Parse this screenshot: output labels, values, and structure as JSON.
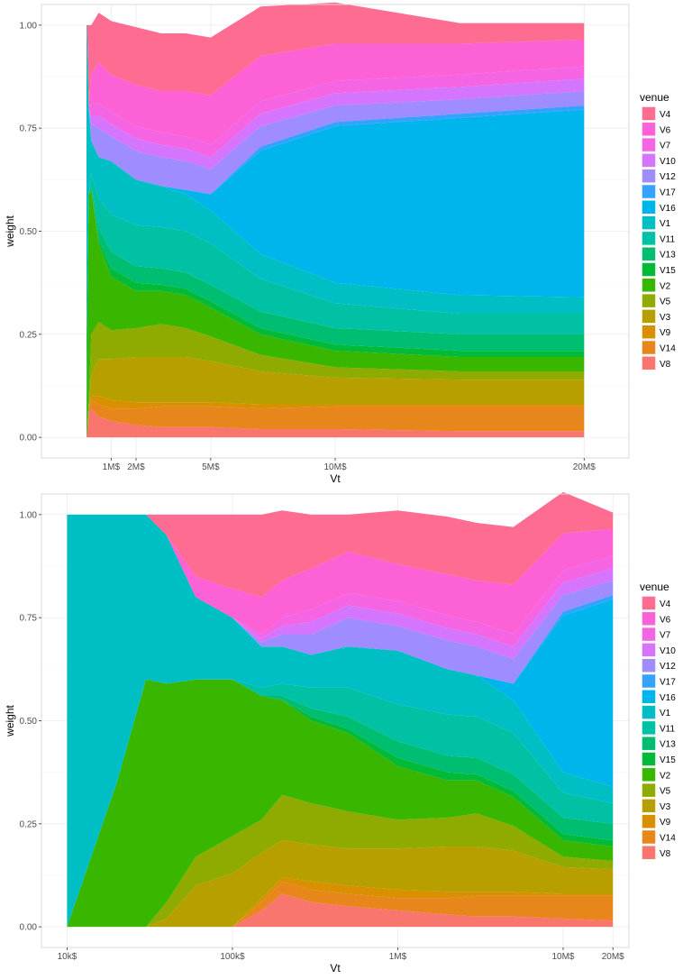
{
  "colors": {
    "V4": "#FF6C91",
    "V6": "#FC61D5",
    "V7": "#F564E3",
    "V10": "#D575FE",
    "V12": "#9F8CFF",
    "V17": "#35A2FF",
    "V16": "#00B5EC",
    "V1": "#00BFC4",
    "V11": "#00C1A3",
    "V13": "#00BE71",
    "V15": "#00BA38",
    "V2": "#39B600",
    "V5": "#8FAA00",
    "V3": "#B79F00",
    "V9": "#D89000",
    "V14": "#E7861B",
    "V8": "#F8766D"
  },
  "chart_data": [
    {
      "type": "area",
      "stacked": true,
      "xlabel": "Vt",
      "ylabel": "weight",
      "xscale": "linear",
      "xlim": [
        -1800000,
        21800000
      ],
      "ylim": [
        0,
        1
      ],
      "x_ticks": [
        1000000,
        2000000,
        5000000,
        10000000,
        20000000
      ],
      "x_tick_labels": [
        "1M$",
        "2M$",
        "5M$",
        "10M$",
        "20M$"
      ],
      "y_ticks": [
        0,
        0.25,
        0.5,
        0.75,
        1.0
      ],
      "y_tick_labels": [
        "0.00",
        "0.25",
        "0.50",
        "0.75",
        "1.00"
      ],
      "grid": true,
      "legend": {
        "title": "venue",
        "placement": "right",
        "entries": [
          "V4",
          "V6",
          "V7",
          "V10",
          "V12",
          "V17",
          "V16",
          "V1",
          "V11",
          "V13",
          "V15",
          "V2",
          "V5",
          "V3",
          "V9",
          "V14",
          "V8"
        ]
      },
      "x": [
        10000,
        30000,
        100000,
        200000,
        500000,
        1000000,
        2000000,
        3000000,
        4000000,
        5000000,
        7000000,
        10000000,
        15000000,
        20000000
      ],
      "series": [
        {
          "name": "V8",
          "values": [
            0,
            0.01,
            0.06,
            0.07,
            0.05,
            0.04,
            0.03,
            0.025,
            0.025,
            0.025,
            0.02,
            0.02,
            0.015,
            0.015
          ]
        },
        {
          "name": "V14",
          "values": [
            0,
            0,
            0.01,
            0.02,
            0.03,
            0.03,
            0.04,
            0.05,
            0.05,
            0.05,
            0.05,
            0.055,
            0.06,
            0.06
          ]
        },
        {
          "name": "V9",
          "values": [
            0,
            0,
            0,
            0.01,
            0.02,
            0.02,
            0.015,
            0.01,
            0.01,
            0.01,
            0.01,
            0.005,
            0.005,
            0.005
          ]
        },
        {
          "name": "V3",
          "values": [
            0,
            0,
            0,
            0.05,
            0.09,
            0.1,
            0.11,
            0.11,
            0.11,
            0.1,
            0.08,
            0.065,
            0.06,
            0.06
          ]
        },
        {
          "name": "V5",
          "values": [
            0,
            0,
            0.02,
            0.1,
            0.09,
            0.07,
            0.07,
            0.08,
            0.07,
            0.06,
            0.04,
            0.025,
            0.02,
            0.02
          ]
        },
        {
          "name": "V2",
          "values": [
            0.02,
            0.25,
            0.5,
            0.35,
            0.19,
            0.13,
            0.09,
            0.08,
            0.08,
            0.07,
            0.05,
            0.04,
            0.035,
            0.035
          ]
        },
        {
          "name": "V15",
          "values": [
            0,
            0,
            0,
            0,
            0.01,
            0.02,
            0.02,
            0.015,
            0.015,
            0.015,
            0.015,
            0.015,
            0.015,
            0.015
          ]
        },
        {
          "name": "V13",
          "values": [
            0,
            0,
            0,
            0.01,
            0.03,
            0.04,
            0.04,
            0.04,
            0.04,
            0.04,
            0.04,
            0.04,
            0.04,
            0.04
          ]
        },
        {
          "name": "V11",
          "values": [
            0,
            0,
            0,
            0.03,
            0.07,
            0.09,
            0.1,
            0.1,
            0.1,
            0.1,
            0.08,
            0.06,
            0.05,
            0.05
          ]
        },
        {
          "name": "V1",
          "values": [
            0.98,
            0.74,
            0.21,
            0.08,
            0.1,
            0.13,
            0.11,
            0.1,
            0.09,
            0.08,
            0.06,
            0.05,
            0.045,
            0.04
          ]
        },
        {
          "name": "V16",
          "values": [
            0,
            0,
            0,
            0,
            0,
            0,
            0,
            0,
            0.01,
            0.04,
            0.25,
            0.38,
            0.43,
            0.455
          ]
        },
        {
          "name": "V17",
          "values": [
            0,
            0,
            0,
            0,
            0,
            0,
            0,
            0,
            0,
            0,
            0.01,
            0.01,
            0.01,
            0.01
          ]
        },
        {
          "name": "V12",
          "values": [
            0,
            0,
            0,
            0.04,
            0.07,
            0.06,
            0.07,
            0.07,
            0.07,
            0.06,
            0.05,
            0.04,
            0.035,
            0.035
          ]
        },
        {
          "name": "V10",
          "values": [
            0,
            0,
            0,
            0.02,
            0.03,
            0.03,
            0.03,
            0.03,
            0.03,
            0.03,
            0.03,
            0.03,
            0.03,
            0.03
          ]
        },
        {
          "name": "V7",
          "values": [
            0,
            0,
            0,
            0.03,
            0.03,
            0.03,
            0.03,
            0.03,
            0.03,
            0.03,
            0.03,
            0.03,
            0.03,
            0.03
          ]
        },
        {
          "name": "V6",
          "values": [
            0,
            0,
            0,
            0.07,
            0.1,
            0.09,
            0.1,
            0.1,
            0.11,
            0.12,
            0.11,
            0.09,
            0.075,
            0.065
          ]
        },
        {
          "name": "V4",
          "values": [
            0,
            0,
            0.2,
            0.12,
            0.12,
            0.13,
            0.14,
            0.14,
            0.14,
            0.14,
            0.12,
            0.1,
            0.05,
            0.04
          ]
        }
      ]
    },
    {
      "type": "area",
      "stacked": true,
      "xlabel": "Vt",
      "ylabel": "weight",
      "xscale": "log",
      "xlim": [
        7000,
        25000000
      ],
      "ylim": [
        0,
        1
      ],
      "x_ticks": [
        10000,
        100000,
        1000000,
        10000000,
        20000000
      ],
      "x_tick_labels": [
        "10k$",
        "100k$",
        "1M$",
        "10M$",
        "20M$"
      ],
      "y_ticks": [
        0,
        0.25,
        0.5,
        0.75,
        1.0
      ],
      "y_tick_labels": [
        "0.00",
        "0.25",
        "0.50",
        "0.75",
        "1.00"
      ],
      "grid": true,
      "legend": {
        "title": "venue",
        "placement": "right",
        "entries": [
          "V4",
          "V6",
          "V7",
          "V10",
          "V12",
          "V17",
          "V16",
          "V1",
          "V11",
          "V13",
          "V15",
          "V2",
          "V5",
          "V3",
          "V9",
          "V14",
          "V8"
        ]
      },
      "x": [
        10000,
        20000,
        30000,
        40000,
        60000,
        100000,
        150000,
        200000,
        300000,
        500000,
        1000000,
        2000000,
        3000000,
        5000000,
        10000000,
        20000000
      ],
      "series": [
        {
          "name": "V8",
          "values": [
            0,
            0,
            0,
            0,
            0,
            0,
            0.04,
            0.08,
            0.06,
            0.05,
            0.04,
            0.03,
            0.025,
            0.025,
            0.02,
            0.015
          ]
        },
        {
          "name": "V14",
          "values": [
            0,
            0,
            0,
            0,
            0,
            0,
            0.02,
            0.03,
            0.03,
            0.03,
            0.03,
            0.04,
            0.05,
            0.05,
            0.055,
            0.06
          ]
        },
        {
          "name": "V9",
          "values": [
            0,
            0,
            0,
            0,
            0,
            0,
            0.01,
            0.01,
            0.02,
            0.02,
            0.02,
            0.015,
            0.01,
            0.01,
            0.005,
            0.005
          ]
        },
        {
          "name": "V3",
          "values": [
            0,
            0,
            0,
            0.02,
            0.1,
            0.13,
            0.11,
            0.09,
            0.09,
            0.09,
            0.1,
            0.11,
            0.11,
            0.1,
            0.065,
            0.06
          ]
        },
        {
          "name": "V5",
          "values": [
            0,
            0,
            0,
            0.04,
            0.07,
            0.09,
            0.08,
            0.11,
            0.1,
            0.09,
            0.07,
            0.07,
            0.08,
            0.06,
            0.025,
            0.02
          ]
        },
        {
          "name": "V2",
          "values": [
            0,
            0.35,
            0.6,
            0.53,
            0.43,
            0.38,
            0.3,
            0.23,
            0.2,
            0.19,
            0.13,
            0.09,
            0.08,
            0.07,
            0.04,
            0.035
          ]
        },
        {
          "name": "V15",
          "values": [
            0,
            0,
            0,
            0,
            0,
            0,
            0,
            0,
            0.01,
            0.01,
            0.02,
            0.02,
            0.015,
            0.015,
            0.015,
            0.015
          ]
        },
        {
          "name": "V13",
          "values": [
            0,
            0,
            0,
            0,
            0,
            0,
            0,
            0.01,
            0.02,
            0.03,
            0.04,
            0.04,
            0.04,
            0.04,
            0.04,
            0.04
          ]
        },
        {
          "name": "V11",
          "values": [
            0,
            0,
            0,
            0,
            0,
            0,
            0.02,
            0.03,
            0.05,
            0.07,
            0.09,
            0.1,
            0.1,
            0.1,
            0.06,
            0.05
          ]
        },
        {
          "name": "V1",
          "values": [
            1.0,
            0.65,
            0.4,
            0.36,
            0.2,
            0.15,
            0.1,
            0.09,
            0.08,
            0.1,
            0.13,
            0.11,
            0.1,
            0.08,
            0.05,
            0.04
          ]
        },
        {
          "name": "V16",
          "values": [
            0,
            0,
            0,
            0,
            0,
            0,
            0,
            0,
            0,
            0,
            0,
            0,
            0,
            0.04,
            0.38,
            0.455
          ]
        },
        {
          "name": "V17",
          "values": [
            0,
            0,
            0,
            0,
            0,
            0,
            0,
            0,
            0,
            0,
            0,
            0,
            0,
            0,
            0.01,
            0.01
          ]
        },
        {
          "name": "V12",
          "values": [
            0,
            0,
            0,
            0,
            0,
            0,
            0.01,
            0.03,
            0.05,
            0.07,
            0.06,
            0.07,
            0.07,
            0.06,
            0.04,
            0.035
          ]
        },
        {
          "name": "V10",
          "values": [
            0,
            0,
            0,
            0,
            0,
            0,
            0.01,
            0.02,
            0.03,
            0.03,
            0.03,
            0.03,
            0.03,
            0.03,
            0.03,
            0.03
          ]
        },
        {
          "name": "V7",
          "values": [
            0,
            0,
            0,
            0,
            0,
            0,
            0.01,
            0.02,
            0.03,
            0.03,
            0.03,
            0.03,
            0.03,
            0.03,
            0.03,
            0.03
          ]
        },
        {
          "name": "V6",
          "values": [
            0,
            0,
            0,
            0,
            0.05,
            0.07,
            0.09,
            0.09,
            0.1,
            0.1,
            0.09,
            0.1,
            0.1,
            0.12,
            0.09,
            0.065
          ]
        },
        {
          "name": "V4",
          "values": [
            0,
            0,
            0,
            0.05,
            0.15,
            0.18,
            0.2,
            0.17,
            0.13,
            0.09,
            0.13,
            0.14,
            0.14,
            0.14,
            0.1,
            0.04
          ]
        }
      ]
    }
  ]
}
